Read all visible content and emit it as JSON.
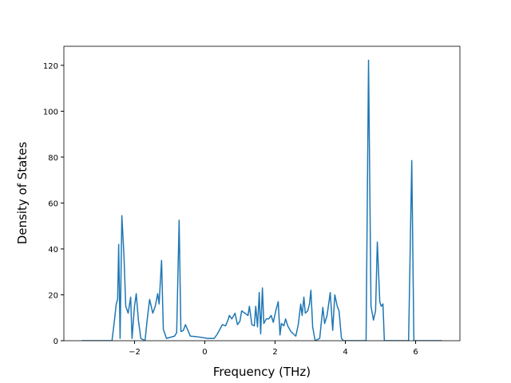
{
  "chart_data": {
    "type": "line",
    "xlabel": "Frequency (THz)",
    "ylabel": "Density of States",
    "color": "#1f77b4",
    "xlim": [
      -4.01,
      7.26
    ],
    "ylim": [
      0,
      128.3
    ],
    "xticks": [
      {
        "value": -2,
        "label": "−2"
      },
      0,
      2,
      4,
      6
    ],
    "yticks": [
      0,
      20,
      40,
      60,
      80,
      100,
      120
    ],
    "x": [
      -3.5,
      -2.64,
      -2.57,
      -2.52,
      -2.48,
      -2.45,
      -2.41,
      -2.36,
      -2.3,
      -2.25,
      -2.18,
      -2.11,
      -2.07,
      -2.0,
      -1.95,
      -1.89,
      -1.82,
      -1.7,
      -1.64,
      -1.57,
      -1.48,
      -1.41,
      -1.34,
      -1.3,
      -1.23,
      -1.18,
      -1.09,
      -0.86,
      -0.8,
      -0.73,
      -0.68,
      -0.61,
      -0.55,
      -0.48,
      -0.41,
      -0.25,
      0.09,
      0.27,
      0.36,
      0.5,
      0.59,
      0.66,
      0.7,
      0.77,
      0.86,
      0.93,
      1.0,
      1.05,
      1.14,
      1.23,
      1.27,
      1.34,
      1.41,
      1.45,
      1.5,
      1.55,
      1.59,
      1.64,
      1.68,
      1.75,
      1.82,
      1.89,
      1.95,
      2.02,
      2.09,
      2.14,
      2.18,
      2.25,
      2.3,
      2.36,
      2.45,
      2.59,
      2.66,
      2.73,
      2.77,
      2.82,
      2.86,
      2.93,
      2.98,
      3.02,
      3.07,
      3.14,
      3.27,
      3.36,
      3.41,
      3.48,
      3.57,
      3.64,
      3.7,
      3.77,
      3.82,
      3.89,
      3.95,
      4.59,
      4.66,
      4.73,
      4.8,
      4.86,
      4.91,
      4.98,
      5.02,
      5.07,
      5.11,
      5.8,
      5.89,
      5.95,
      6.75
    ],
    "values": [
      0,
      0,
      9,
      16,
      18,
      42,
      1,
      54.5,
      37,
      15,
      12,
      19,
      1,
      15,
      20.5,
      9,
      1,
      0,
      9,
      18,
      12,
      15,
      20.5,
      16,
      35,
      5,
      1,
      2,
      3.5,
      52.5,
      4,
      4.5,
      7,
      4.5,
      2,
      1.8,
      1,
      1,
      3,
      7,
      6.5,
      9,
      11,
      9.5,
      12,
      7,
      8.5,
      13,
      12,
      11,
      15,
      7,
      6.5,
      15,
      6,
      21,
      3,
      23,
      7.5,
      9.5,
      9.5,
      11,
      8,
      13,
      17,
      2.5,
      7.5,
      6.5,
      9.5,
      6.5,
      4,
      2,
      7,
      16,
      11,
      19,
      12,
      13,
      16,
      22,
      6,
      0,
      1,
      14.5,
      7.5,
      11,
      21,
      4.5,
      20,
      15,
      13,
      1,
      0,
      0,
      122.2,
      15,
      9,
      13,
      43,
      17,
      15,
      16,
      0,
      0,
      78.5,
      0,
      0
    ]
  }
}
